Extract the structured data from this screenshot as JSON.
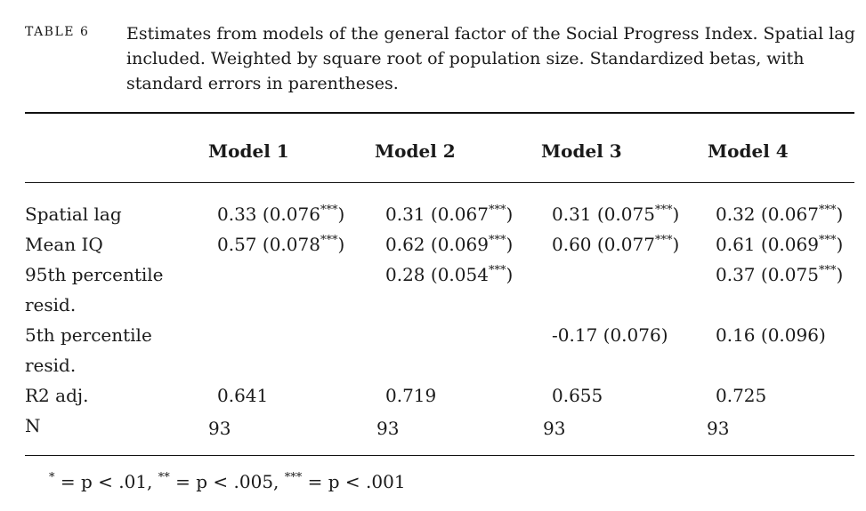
{
  "table": {
    "label": "TABLE 6",
    "caption": "Estimates from models of the general factor of the Social Progress Index. Spatial lag included. Weighted by square root of population size. Standardized betas, with standard errors in parentheses.",
    "columns": [
      "Model 1",
      "Model 2",
      "Model 3",
      "Model 4"
    ],
    "rows": [
      {
        "label": "Spatial lag",
        "cells": [
          {
            "value": "0.33 (0.076",
            "stars": "***",
            "close": ")"
          },
          {
            "value": "0.31 (0.067",
            "stars": "***",
            "close": ")"
          },
          {
            "value": "0.31 (0.075",
            "stars": "***",
            "close": ")"
          },
          {
            "value": "0.32 (0.067",
            "stars": "***",
            "close": ")"
          }
        ]
      },
      {
        "label": "Mean IQ",
        "cells": [
          {
            "value": "0.57 (0.078",
            "stars": "***",
            "close": ")"
          },
          {
            "value": "0.62 (0.069",
            "stars": "***",
            "close": ")"
          },
          {
            "value": "0.60 (0.077",
            "stars": "***",
            "close": ")"
          },
          {
            "value": "0.61 (0.069",
            "stars": "***",
            "close": ")"
          }
        ]
      },
      {
        "label": "95th percentile resid.",
        "cells": [
          null,
          {
            "value": "0.28 (0.054",
            "stars": "***",
            "close": ")"
          },
          null,
          {
            "value": "0.37 (0.075",
            "stars": "***",
            "close": ")"
          }
        ]
      },
      {
        "label": "5th percentile resid.",
        "cells": [
          null,
          null,
          {
            "value": "-0.17 (0.076)",
            "stars": "",
            "close": ""
          },
          {
            "value": "0.16 (0.096)",
            "stars": "",
            "close": ""
          }
        ]
      },
      {
        "label": "R2 adj.",
        "cells": [
          {
            "value": "0.641",
            "stars": "",
            "close": ""
          },
          {
            "value": "0.719",
            "stars": "",
            "close": ""
          },
          {
            "value": "0.655",
            "stars": "",
            "close": ""
          },
          {
            "value": "0.725",
            "stars": "",
            "close": ""
          }
        ]
      },
      {
        "label": "N",
        "cells": [
          {
            "value": "93",
            "stars": "",
            "close": ""
          },
          {
            "value": "93",
            "stars": "",
            "close": ""
          },
          {
            "value": "93",
            "stars": "",
            "close": ""
          },
          {
            "value": "93",
            "stars": "",
            "close": ""
          }
        ]
      }
    ],
    "footnote": {
      "one_star": "*",
      "one_text": " = p < .01, ",
      "two_star": "**",
      "two_text": " = p < .005, ",
      "three_star": "***",
      "three_text": " = p < .001"
    }
  }
}
